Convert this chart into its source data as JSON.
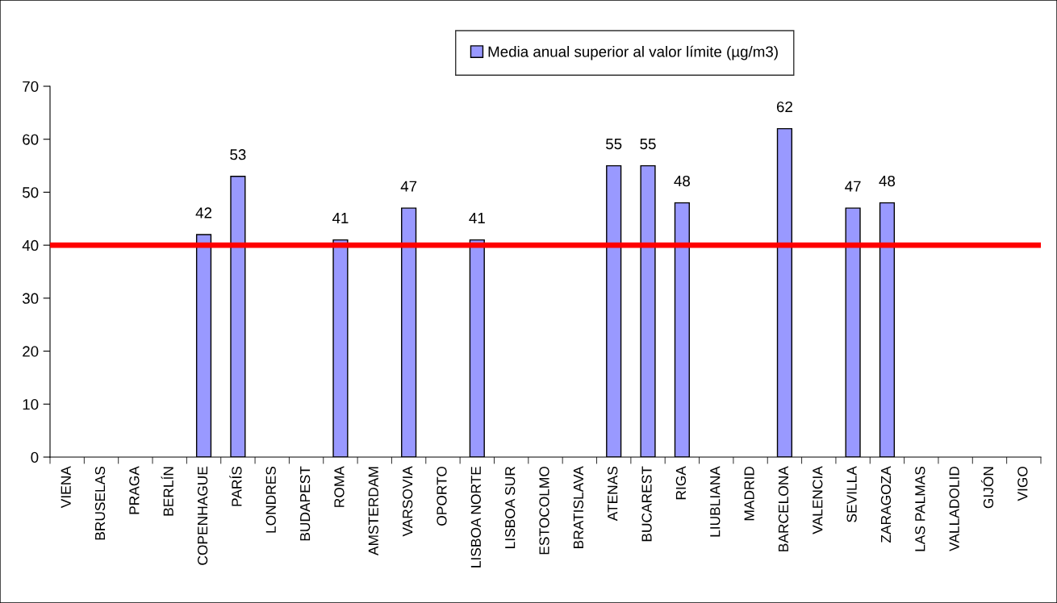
{
  "chart_data": {
    "type": "bar",
    "categories": [
      "VIENA",
      "BRUSELAS",
      "PRAGA",
      "BERLÍN",
      "COPENHAGUE",
      "PARÍS",
      "LONDRES",
      "BUDAPEST",
      "ROMA",
      "AMSTERDAM",
      "VARSOVIA",
      "OPORTO",
      "LISBOA NORTE",
      "LISBOA SUR",
      "ESTOCOLMO",
      "BRATISLAVA",
      "ATENAS",
      "BUCAREST",
      "RIGA",
      "LIUBLIANA",
      "MADRID",
      "BARCELONA",
      "VALENCIA",
      "SEVILLA",
      "ZARAGOZA",
      "LAS PALMAS",
      "VALLADOLID",
      "GIJÓN",
      "VIGO"
    ],
    "series": [
      {
        "name": "Media anual superior al valor límite (µg/m3)",
        "color": "#9999ff",
        "values": [
          null,
          null,
          null,
          null,
          42,
          53,
          null,
          null,
          41,
          null,
          47,
          null,
          41,
          null,
          null,
          null,
          55,
          55,
          48,
          null,
          null,
          62,
          null,
          47,
          48,
          null,
          null,
          null,
          null
        ]
      }
    ],
    "ylim": [
      0,
      70
    ],
    "yticks": [
      0,
      10,
      20,
      30,
      40,
      50,
      60,
      70
    ],
    "ref_lines": [
      {
        "axis": "y",
        "value": 40,
        "color": "#ff0000",
        "line_style": "solid"
      }
    ],
    "data_labels": true,
    "legend": "top",
    "grid": false
  }
}
